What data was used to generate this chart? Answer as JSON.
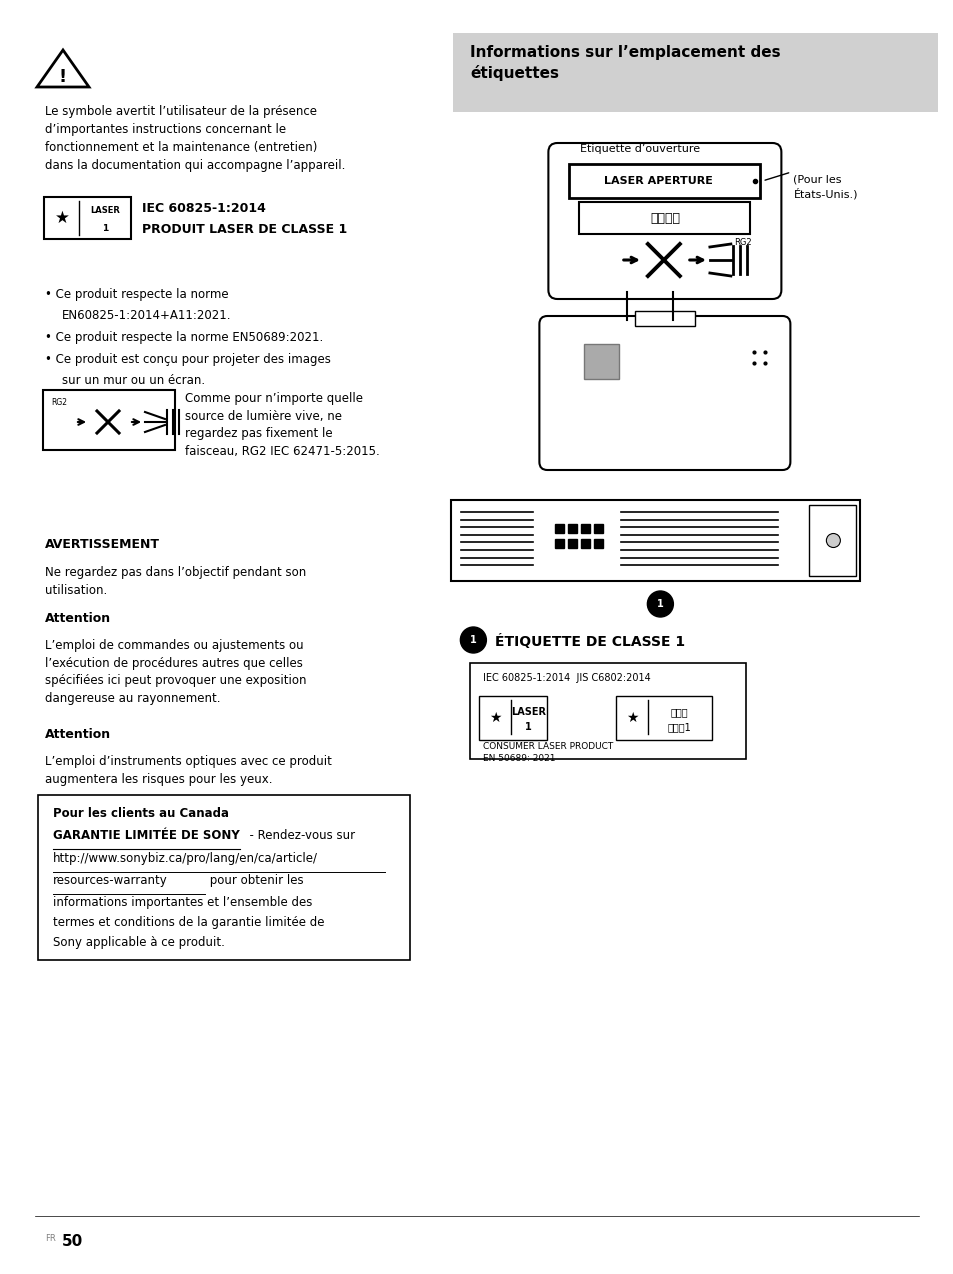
{
  "bg_color": "#ffffff",
  "page_width": 9.54,
  "page_height": 12.74,
  "title_bg": "#d0d0d0",
  "col_split": 0.47,
  "left_col": {
    "para1": "Le symbole avertit l’utilisateur de la présence\nd’importantes instructions concernant le\nfonctionnement et la maintenance (entretien)\ndans la documentation qui accompagne l’appareil.",
    "laser_label_line1": "IEC 60825-1:2014",
    "laser_label_line2": "PRODUIT LASER DE CLASSE 1",
    "bullet1": "• Ce produit respecte la norme",
    "bullet1b": "EN60825-1:2014+A11:2021.",
    "bullet2": "• Ce produit respecte la norme EN50689:2021.",
    "bullet3": "• Ce produit est conçu pour projeter des images",
    "bullet3b": "sur un mur ou un écran.",
    "rg2_caption": "Comme pour n’importe quelle\nsource de lumière vive, ne\nregardez pas fixement le\nfaisceau, RG2 IEC 62471-5:2015.",
    "warning_title": "AVERTISSEMENT",
    "warning_text": "Ne regardez pas dans l’objectif pendant son\nutilisation.",
    "attention1_title": "Attention",
    "attention1_text": "L’emploi de commandes ou ajustements ou\nl’exécution de procédures autres que celles\nspécifiées ici peut provoquer une exposition\ndangereuse au rayonnement.",
    "attention2_title": "Attention",
    "attention2_text": "L’emploi d’instruments optiques avec ce produit\naugmentera les risques pour les yeux.",
    "canada_title": "Pour les clients au Canada",
    "canada_bold": "GARANTIE LIMITÉE DE SONY",
    "canada_after_bold": "  - Rendez-vous sur",
    "canada_url1": "http://www.sonybiz.ca/pro/lang/en/ca/article/",
    "canada_url2": "resources-warranty",
    "canada_rest": " pour obtenir les\ninformations importantes et l’ensemble des\ntermes et conditions de la garantie limitée de\nSony applicable à ce produit."
  },
  "right_col": {
    "title": "Informations sur l’emplacement des\nétiquettes",
    "etiquette_label": "Étiquette d’ouverture",
    "laser_aperture_text": "LASER APERTURE",
    "chinese_text": "激光窗口",
    "rg2_label": "RG2",
    "pour_les": "(Pour les\nÉtats-Unis.)",
    "etiquette_classe_title": "ÉTIQUETTE DE CLASSE 1",
    "iec_text": "IEC 60825-1:2014  JIS C6802:2014",
    "laser_text1": "LASER",
    "laser_text2": "1",
    "katakana_text1": "レーザ",
    "katakana_text2": "クラス1",
    "consumer_text": "CONSUMER LASER PRODUCT\nEN 50689: 2021"
  },
  "page_number": "50",
  "page_lang": "FR"
}
